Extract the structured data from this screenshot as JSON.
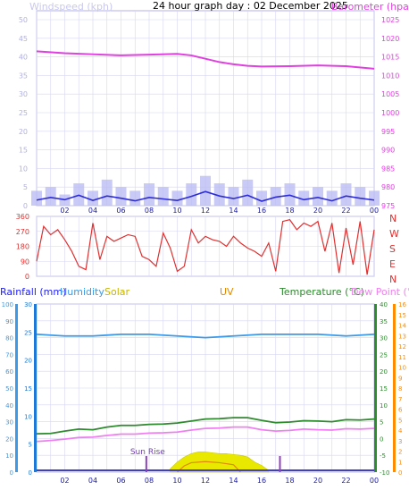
{
  "header": {
    "title": "24 hour graph day : 02 December 2025",
    "left_label": "Windspeed (kph)",
    "right_label": "Barometer (hpa)"
  },
  "colors": {
    "barometer": "#e040e0",
    "wind_avg": "#2c2cd8",
    "wind_gust": "#b8b8f4",
    "direction": "#e03030",
    "humidity": "#3c9ae8",
    "temperature": "#2e8b2e",
    "dewpoint": "#f080f0",
    "solar": "#e8e800",
    "uv": "#e08a00",
    "rain_axis": "#1e78d8",
    "uv_axis": "#ff8c00",
    "grid": "#d6d6f2",
    "text_blue": "#2020ff"
  },
  "chart_data": [
    {
      "type": "line",
      "title": "24 hour graph day : 02 December 2025",
      "left_axis": {
        "label": "Windspeed (kph)",
        "ticks": [
          "0",
          "5",
          "10",
          "15",
          "20",
          "25",
          "30",
          "35",
          "40",
          "45",
          "50"
        ],
        "range": [
          0,
          50
        ]
      },
      "right_axis": {
        "label": "Barometer (hpa)",
        "ticks": [
          "975",
          "980",
          "985",
          "990",
          "995",
          "1000",
          "1005",
          "1010",
          "1015",
          "1020",
          "1025"
        ],
        "range": [
          975,
          1025
        ]
      },
      "x_labels": [
        "02",
        "04",
        "06",
        "08",
        "10",
        "12",
        "14",
        "16",
        "18",
        "20",
        "22",
        "00"
      ],
      "grid": true,
      "series": [
        {
          "key": "barometer",
          "x": [
            0,
            2,
            4,
            6,
            8,
            10,
            11,
            12,
            13,
            14,
            15,
            16,
            18,
            20,
            22,
            24
          ],
          "values": [
            1016.5,
            1016.0,
            1015.7,
            1015.4,
            1015.6,
            1015.8,
            1015.4,
            1014.5,
            1013.6,
            1013.0,
            1012.6,
            1012.4,
            1012.5,
            1012.7,
            1012.5,
            1011.8
          ]
        },
        {
          "key": "wind_gust",
          "x": [
            0,
            1,
            2,
            3,
            4,
            5,
            6,
            7,
            8,
            9,
            10,
            11,
            12,
            13,
            14,
            15,
            16,
            17,
            18,
            19,
            20,
            21,
            22,
            23,
            24
          ],
          "values": [
            4,
            5,
            3,
            6,
            4,
            7,
            5,
            4,
            6,
            5,
            4,
            6,
            8,
            6,
            5,
            7,
            4,
            5,
            6,
            4,
            5,
            4,
            6,
            5,
            4
          ]
        },
        {
          "key": "wind_avg",
          "x": [
            0,
            1,
            2,
            3,
            4,
            5,
            6,
            7,
            8,
            9,
            10,
            11,
            12,
            13,
            14,
            15,
            16,
            17,
            18,
            19,
            20,
            21,
            22,
            23,
            24
          ],
          "values": [
            1.5,
            2.2,
            1.6,
            2.8,
            1.4,
            2.6,
            2.0,
            1.3,
            2.2,
            1.8,
            1.4,
            2.5,
            3.8,
            2.6,
            1.9,
            2.8,
            1.2,
            2.3,
            2.8,
            1.6,
            2.2,
            1.3,
            2.6,
            2.0,
            1.5
          ]
        }
      ]
    },
    {
      "type": "line",
      "left_axis": {
        "ticks": [
          "0",
          "90",
          "180",
          "270",
          "360"
        ],
        "range": [
          0,
          360
        ]
      },
      "right_labels": [
        "N",
        "W",
        "S",
        "E",
        "N"
      ],
      "series": [
        {
          "key": "direction",
          "x": [
            0,
            0.5,
            1,
            1.5,
            2,
            2.5,
            3,
            3.5,
            4,
            4.5,
            5,
            5.5,
            6,
            6.5,
            7,
            7.5,
            8,
            8.5,
            9,
            9.5,
            10,
            10.5,
            11,
            11.5,
            12,
            12.5,
            13,
            13.5,
            14,
            14.5,
            15,
            15.5,
            16,
            16.5,
            17,
            17.5,
            18,
            18.5,
            19,
            19.5,
            20,
            20.5,
            21,
            21.5,
            22,
            22.5,
            23,
            23.5,
            24
          ],
          "values": [
            90,
            300,
            250,
            280,
            220,
            150,
            60,
            40,
            320,
            100,
            240,
            210,
            230,
            250,
            240,
            120,
            100,
            60,
            260,
            170,
            30,
            60,
            280,
            200,
            240,
            220,
            210,
            180,
            240,
            200,
            170,
            150,
            120,
            200,
            30,
            330,
            340,
            280,
            320,
            300,
            330,
            150,
            320,
            20,
            290,
            70,
            330,
            10,
            280
          ]
        }
      ]
    },
    {
      "type": "line",
      "legend": [
        "Rainfall (mm)",
        "Humidity",
        "Solar",
        "UV",
        "Temperature (°C)",
        "Dew Point (°C)"
      ],
      "axes": {
        "humidity": {
          "ticks": [
            "0",
            "10",
            "20",
            "30",
            "40",
            "50",
            "60",
            "70",
            "80",
            "90",
            "100"
          ],
          "range": [
            0,
            100
          ]
        },
        "rainfall": {
          "ticks": [
            "0",
            "5",
            "10",
            "15",
            "20",
            "25",
            "30"
          ],
          "range": [
            0,
            30
          ]
        },
        "temperature": {
          "ticks": [
            "-10",
            "-5",
            "0",
            "5",
            "10",
            "15",
            "20",
            "25",
            "30",
            "35",
            "40"
          ],
          "range": [
            -10,
            40
          ]
        },
        "uv": {
          "ticks": [
            "0",
            "1",
            "2",
            "3",
            "4",
            "5",
            "6",
            "7",
            "8",
            "9",
            "10",
            "11",
            "12",
            "13",
            "14",
            "15",
            "16"
          ],
          "range": [
            0,
            16
          ]
        }
      },
      "x_labels": [
        "02",
        "04",
        "06",
        "08",
        "10",
        "12",
        "14",
        "16",
        "18",
        "20",
        "22",
        "00"
      ],
      "annotations": [
        {
          "text": "Sun Rise",
          "x": 7.8
        },
        {
          "text": "",
          "x": 17.3
        }
      ],
      "series": [
        {
          "key": "humidity",
          "x": [
            0,
            2,
            4,
            6,
            8,
            10,
            12,
            14,
            16,
            18,
            20,
            22,
            24
          ],
          "values": [
            82,
            81,
            81,
            82,
            82,
            81,
            80,
            81,
            82,
            82,
            82,
            81,
            82
          ]
        },
        {
          "key": "temperature",
          "x": [
            0,
            1,
            2,
            3,
            4,
            5,
            6,
            7,
            8,
            9,
            10,
            11,
            12,
            13,
            14,
            15,
            16,
            17,
            18,
            19,
            20,
            21,
            22,
            23,
            24
          ],
          "values": [
            1.4,
            1.5,
            2.2,
            2.8,
            2.6,
            3.4,
            3.9,
            3.9,
            4.2,
            4.3,
            4.6,
            5.2,
            5.8,
            5.9,
            6.2,
            6.2,
            5.4,
            4.7,
            4.9,
            5.3,
            5.2,
            5.0,
            5.6,
            5.5,
            5.8
          ]
        },
        {
          "key": "dewpoint",
          "x": [
            0,
            1,
            2,
            3,
            4,
            5,
            6,
            7,
            8,
            9,
            10,
            11,
            12,
            13,
            14,
            15,
            16,
            17,
            18,
            19,
            20,
            21,
            22,
            23,
            24
          ],
          "values": [
            -0.9,
            -0.6,
            -0.2,
            0.3,
            0.4,
            0.9,
            1.3,
            1.3,
            1.6,
            1.7,
            1.9,
            2.5,
            3.0,
            3.1,
            3.4,
            3.4,
            2.6,
            2.2,
            2.4,
            2.8,
            2.6,
            2.5,
            2.9,
            2.8,
            3.0
          ]
        },
        {
          "key": "solar",
          "x": [
            9.5,
            10,
            10.5,
            11,
            11.5,
            12,
            12.5,
            13,
            13.5,
            14,
            14.5,
            15,
            15.5,
            16,
            16.5
          ],
          "values": [
            2,
            6,
            9,
            11,
            12,
            12,
            11.5,
            11,
            11,
            10.5,
            10,
            9,
            6,
            4,
            1
          ]
        },
        {
          "key": "uv",
          "x": [
            10,
            10.5,
            11,
            12,
            13,
            14,
            14.5
          ],
          "values": [
            0,
            0.6,
            0.9,
            1.0,
            0.9,
            0.7,
            0
          ]
        },
        {
          "key": "rainfall",
          "x": [
            0,
            24
          ],
          "values": [
            0,
            0
          ]
        }
      ]
    }
  ]
}
